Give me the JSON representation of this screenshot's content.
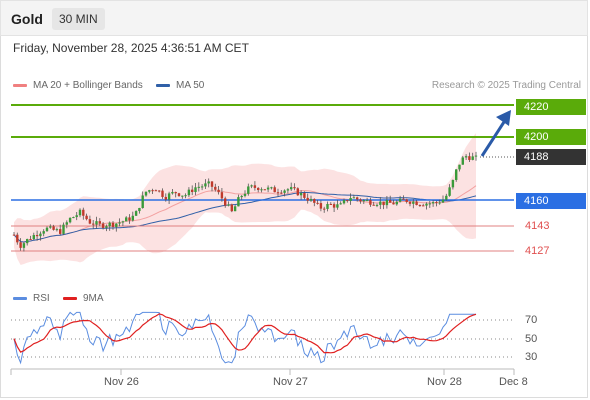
{
  "header": {
    "symbol": "Gold",
    "timeframe": "30 MIN"
  },
  "datetime": "Friday, November 28, 2025 4:36:51 AM CET",
  "legend": {
    "ma20": {
      "label": "MA 20 + Bollinger Bands",
      "color": "#f08080"
    },
    "ma50": {
      "label": "MA 50",
      "color": "#3060a8"
    }
  },
  "credit": "Research © 2025 Trading Central",
  "levels": {
    "r2": "4220",
    "r1": "4200",
    "last": "4188",
    "pivot": "4160",
    "s1": "4143",
    "s2": "4127"
  },
  "colors": {
    "resistance": "#5aab0a",
    "last": "#333333",
    "pivot": "#2b6fe3",
    "support": "#e05050",
    "rsi": "#5b8de0",
    "rsi_ma": "#e02020"
  },
  "rsi": {
    "legend_rsi": "RSI",
    "legend_ma": "9MA",
    "levels": [
      "70",
      "50",
      "30"
    ]
  },
  "xaxis": [
    "Nov 26",
    "Nov 27",
    "Nov 28",
    "Dec 8"
  ]
}
